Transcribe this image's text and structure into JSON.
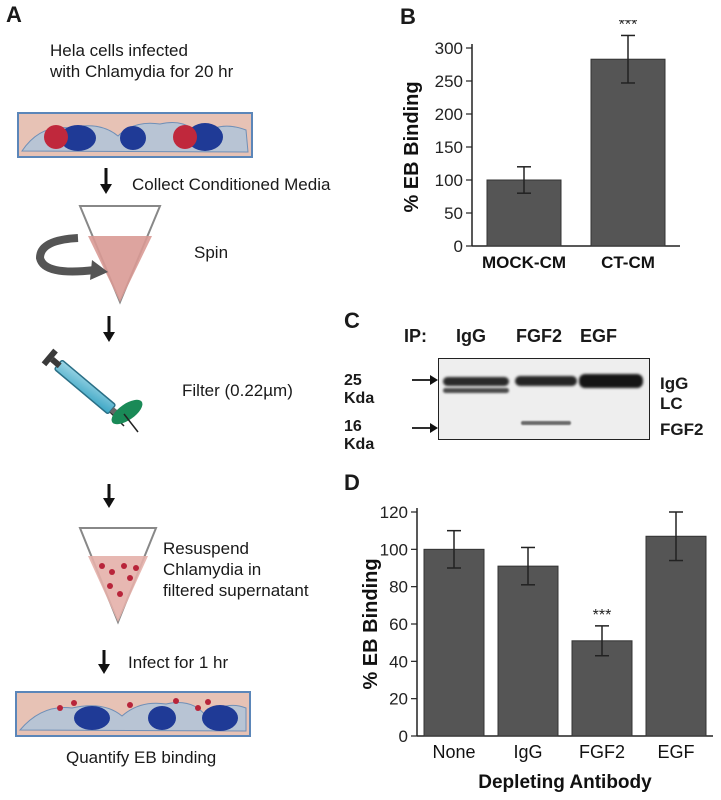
{
  "panels": {
    "a": "A",
    "b": "B",
    "c": "C",
    "d": "D"
  },
  "flow": {
    "step1": [
      "Hela cells infected",
      "with Chlamydia for 20 hr"
    ],
    "step2": "Collect Conditioned Media",
    "step3": "Spin",
    "step4": "Filter (0.22µm)",
    "step5": [
      "Resuspend",
      "Chlamydia in",
      "filtered supernatant"
    ],
    "step6": "Infect for 1 hr",
    "step7": "Quantify EB binding",
    "colors": {
      "cell": "#b8c4d4",
      "nucleus": "#1f3a96",
      "chlamydia": "#c0283c",
      "media": "#e2b6ae",
      "arrow": "#111111"
    },
    "icons": [
      "down-arrow-icon",
      "rotation-arrow-icon",
      "syringe-icon",
      "tube-icon"
    ]
  },
  "blot": {
    "ip_label": "IP:",
    "lanes": [
      "IgG",
      "FGF2",
      "EGF"
    ],
    "markers": [
      "25 Kda",
      "16 Kda"
    ],
    "bands": [
      "IgG LC",
      "FGF2"
    ]
  },
  "chart_data": [
    {
      "type": "bar",
      "panel": "B",
      "categories": [
        "MOCK-CM",
        "CT-CM"
      ],
      "values": [
        100,
        283
      ],
      "errors": [
        20,
        36
      ],
      "annotations": [
        "",
        "***"
      ],
      "xlabel": "",
      "ylabel": "% EB Binding",
      "ylim": [
        0,
        300
      ],
      "yticks": [
        0,
        50,
        100,
        150,
        200,
        250,
        300
      ],
      "grid": false,
      "bar_color": "#555555"
    },
    {
      "type": "bar",
      "panel": "D",
      "categories": [
        "None",
        "IgG",
        "FGF2",
        "EGF"
      ],
      "values": [
        100,
        91,
        51,
        107
      ],
      "errors": [
        10,
        10,
        8,
        13
      ],
      "annotations": [
        "",
        "",
        "***",
        ""
      ],
      "xlabel": "Depleting Antibody",
      "ylabel": "% EB Binding",
      "ylim": [
        0,
        120
      ],
      "yticks": [
        0,
        20,
        40,
        60,
        80,
        100,
        120
      ],
      "grid": false,
      "bar_color": "#555555"
    }
  ]
}
